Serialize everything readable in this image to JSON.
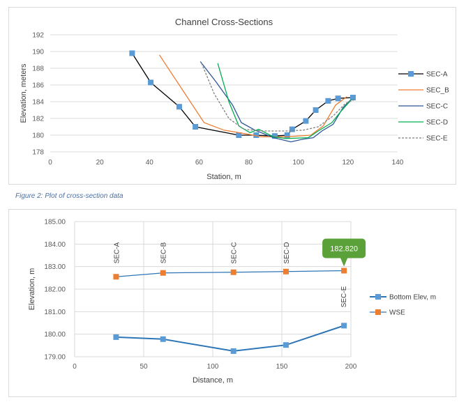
{
  "caption": "Figure 2: Plot of cross-section data",
  "chart_data": [
    {
      "type": "line",
      "title": "Channel Cross-Sections",
      "xlabel": "Station, m",
      "ylabel": "Elevation, meters",
      "xlim": [
        0,
        140
      ],
      "ylim": [
        178,
        192
      ],
      "xticks": [
        0,
        20,
        40,
        60,
        80,
        100,
        120,
        140
      ],
      "yticks": [
        178,
        180,
        182,
        184,
        186,
        188,
        190,
        192
      ],
      "grid": "horizontal",
      "legend": "right",
      "series": [
        {
          "name": "SEC-A",
          "color": "#000000",
          "style": "solid",
          "marker": "square",
          "x": [
            33,
            40.5,
            52,
            58.5,
            76,
            83,
            90.5,
            95.5,
            97.5,
            103,
            107,
            112,
            116,
            122
          ],
          "y": [
            189.8,
            186.3,
            183.4,
            181.0,
            180.0,
            180.0,
            179.9,
            180.0,
            180.7,
            181.7,
            183.0,
            184.1,
            184.4,
            184.5
          ]
        },
        {
          "name": "SEC_B",
          "color": "#ed7d31",
          "style": "solid",
          "x": [
            44,
            62,
            70,
            80,
            85,
            95,
            105,
            110,
            115,
            119.5
          ],
          "y": [
            189.6,
            181.5,
            180.6,
            180.1,
            179.8,
            179.8,
            180.0,
            181.1,
            183.6,
            184.6
          ]
        },
        {
          "name": "SEC-C",
          "color": "#2e5597",
          "style": "solid",
          "x": [
            60.5,
            67,
            73.5,
            77,
            82.5,
            90,
            97,
            101.5,
            106,
            109.5,
            114,
            118,
            121
          ],
          "y": [
            188.8,
            186.3,
            183.6,
            181.5,
            180.6,
            179.7,
            179.2,
            179.5,
            179.7,
            180.5,
            181.3,
            183.3,
            184.2
          ]
        },
        {
          "name": "SEC-D",
          "color": "#00b050",
          "style": "solid",
          "x": [
            67.5,
            72,
            76,
            80.5,
            84,
            90,
            95,
            104,
            108,
            113.5,
            117,
            121.5
          ],
          "y": [
            188.6,
            184.0,
            181.1,
            180.3,
            180.7,
            179.8,
            179.6,
            179.7,
            180.5,
            181.5,
            182.8,
            184.3
          ]
        },
        {
          "name": "SEC-E",
          "color": "#7f7f7f",
          "style": "dashed",
          "x": [
            61,
            66,
            72,
            78,
            86,
            95,
            102,
            108,
            114,
            119,
            123
          ],
          "y": [
            188.6,
            185.0,
            182.0,
            180.7,
            180.5,
            180.5,
            180.6,
            181.0,
            182.3,
            183.8,
            184.3
          ]
        }
      ]
    },
    {
      "type": "line",
      "title": "",
      "xlabel": "Distance, m",
      "ylabel": "Elevation, m",
      "xlim": [
        0,
        200
      ],
      "ylim": [
        179.0,
        185.0
      ],
      "xticks": [
        0,
        50,
        100,
        150,
        200
      ],
      "yticks": [
        "179.00",
        "180.00",
        "181.00",
        "182.00",
        "183.00",
        "184.00",
        "185.00"
      ],
      "grid": "both",
      "legend": "right",
      "section_labels": [
        {
          "x": 30,
          "label": "SEC-A"
        },
        {
          "x": 64,
          "label": "SEC-B"
        },
        {
          "x": 115,
          "label": "SEC-C"
        },
        {
          "x": 153,
          "label": "SEC-D"
        },
        {
          "x": 195,
          "label": "SEC-E"
        }
      ],
      "callout": {
        "text": "182.820",
        "color": "#5ba139"
      },
      "series": [
        {
          "name": "Bottom Elev, m",
          "color": "#2e75b6",
          "marker": "square",
          "x": [
            30,
            64,
            115,
            153,
            195
          ],
          "y": [
            179.87,
            179.78,
            179.25,
            179.52,
            180.38
          ]
        },
        {
          "name": "WSE",
          "color": "#2e75b6",
          "marker_color": "#ed7d31",
          "marker": "square",
          "x": [
            30,
            64,
            115,
            153,
            195
          ],
          "y": [
            182.55,
            182.72,
            182.75,
            182.78,
            182.82
          ]
        }
      ]
    }
  ]
}
